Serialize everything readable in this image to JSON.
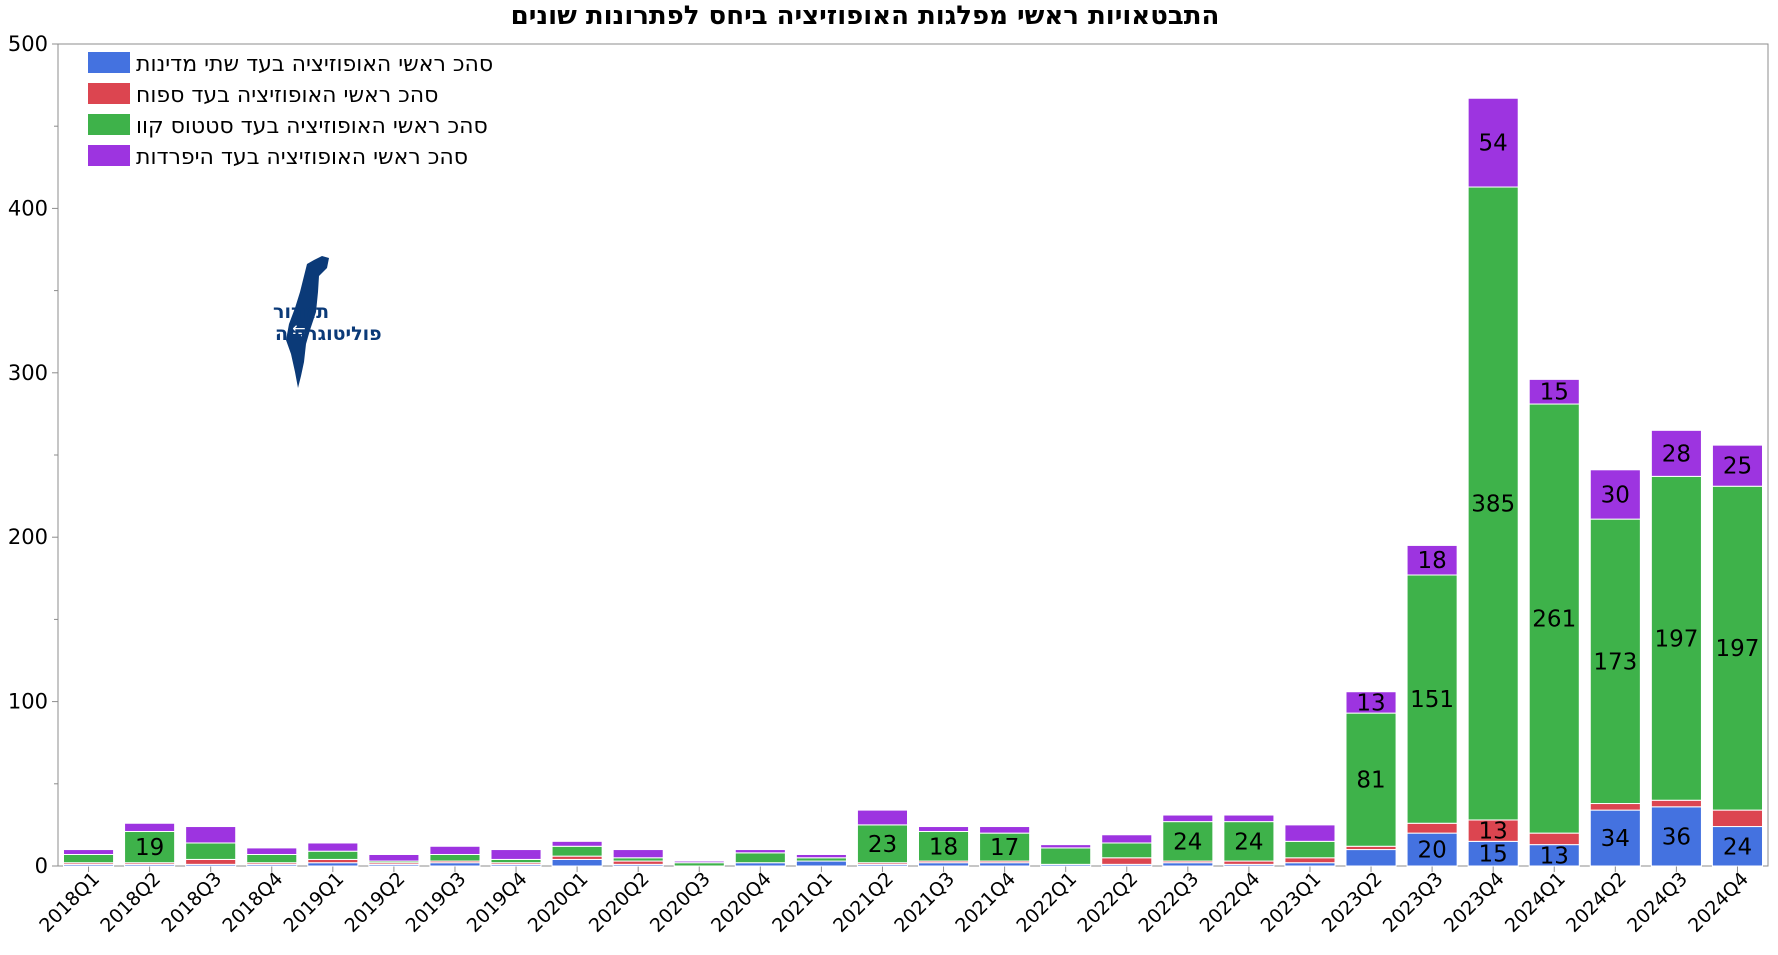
{
  "chart_data": {
    "type": "bar",
    "stacked": true,
    "title": "התבטאויות ראשי מפלגות האופוזיציה ביחס לפתרונות שונים",
    "xlabel": "",
    "ylabel": "",
    "ylim": [
      0,
      500
    ],
    "yticks": [
      0,
      100,
      200,
      300,
      400,
      500
    ],
    "grid": false,
    "legend_position": "top-left",
    "categories": [
      "2018Q1",
      "2018Q2",
      "2018Q3",
      "2018Q4",
      "2019Q1",
      "2019Q2",
      "2019Q3",
      "2019Q4",
      "2020Q1",
      "2020Q2",
      "2020Q3",
      "2020Q4",
      "2021Q1",
      "2021Q2",
      "2021Q3",
      "2021Q4",
      "2022Q1",
      "2022Q2",
      "2022Q3",
      "2022Q4",
      "2023Q1",
      "2023Q2",
      "2023Q3",
      "2023Q4",
      "2024Q1",
      "2024Q2",
      "2024Q3",
      "2024Q4"
    ],
    "series": [
      {
        "name": "סהכ ראשי האופוזיציה בעד שתי מדינות",
        "color": "#4472e0",
        "values": [
          1,
          1,
          1,
          1,
          2,
          1,
          2,
          1,
          4,
          1,
          0,
          2,
          3,
          1,
          2,
          2,
          1,
          1,
          2,
          1,
          2,
          10,
          20,
          15,
          13,
          34,
          36,
          24
        ],
        "labels": [
          "",
          "",
          "",
          "",
          "",
          "",
          "",
          "",
          "",
          "",
          "",
          "",
          "",
          "",
          "",
          "",
          "",
          "",
          "",
          "",
          "",
          "",
          "20",
          "15",
          "13",
          "34",
          "36",
          "24"
        ]
      },
      {
        "name": "סהכ ראשי האופוזיציה בעד ספוח",
        "color": "#dc4550",
        "values": [
          1,
          1,
          3,
          1,
          2,
          1,
          1,
          1,
          2,
          2,
          0,
          0,
          0,
          1,
          1,
          1,
          0,
          4,
          1,
          2,
          3,
          2,
          6,
          13,
          7,
          4,
          4,
          10
        ],
        "labels": [
          "",
          "",
          "",
          "",
          "",
          "",
          "",
          "",
          "",
          "",
          "",
          "",
          "",
          "",
          "",
          "",
          "",
          "",
          "",
          "",
          "",
          "",
          "",
          "13",
          "",
          "",
          "",
          ""
        ]
      },
      {
        "name": "סהכ ראשי האופוזיציה בעד סטטוס קוו",
        "color": "#3eb24a",
        "values": [
          5,
          19,
          10,
          5,
          5,
          1,
          4,
          2,
          6,
          2,
          2,
          6,
          2,
          23,
          18,
          17,
          10,
          9,
          24,
          24,
          10,
          81,
          151,
          385,
          261,
          173,
          197,
          197
        ],
        "labels": [
          "",
          "19",
          "",
          "",
          "",
          "",
          "",
          "",
          "",
          "",
          "",
          "",
          "",
          "23",
          "18",
          "17",
          "",
          "",
          "24",
          "24",
          "",
          "81",
          "151",
          "385",
          "261",
          "173",
          "197",
          "197"
        ]
      },
      {
        "name": "סהכ ראשי האופוזיציה בעד היפרדות",
        "color": "#9d34e0",
        "values": [
          3,
          5,
          10,
          4,
          5,
          4,
          5,
          6,
          3,
          5,
          1,
          2,
          2,
          9,
          3,
          4,
          2,
          5,
          4,
          4,
          10,
          13,
          18,
          54,
          15,
          30,
          28,
          25
        ],
        "labels": [
          "",
          "",
          "",
          "",
          "",
          "",
          "",
          "",
          "",
          "",
          "",
          "",
          "",
          "",
          "",
          "",
          "",
          "",
          "",
          "",
          "",
          "13",
          "18",
          "54",
          "15",
          "30",
          "28",
          "25"
        ]
      }
    ]
  },
  "logo": {
    "line1": "תמרור",
    "line2": "פוליטוגרפיה",
    "color": "#0b3a78"
  }
}
